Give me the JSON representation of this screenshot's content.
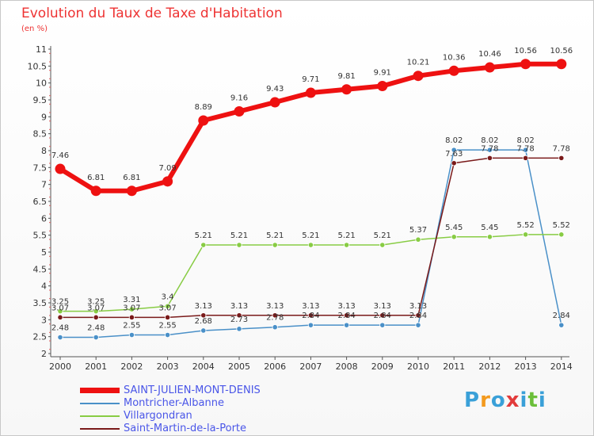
{
  "header": {
    "title": "Evolution du Taux de Taxe d'Habitation",
    "subtitle": "(en %)"
  },
  "logo": {
    "letters": [
      "P",
      "r",
      "o",
      "x",
      "i",
      "t",
      "i"
    ],
    "colors": [
      "#3aa0d8",
      "#f39a1e",
      "#3aa0d8",
      "#e23b3b",
      "#3aa0d8",
      "#6cbf3a",
      "#3aa0d8"
    ]
  },
  "chart_data": {
    "type": "line",
    "title": "Evolution du Taux de Taxe d'Habitation",
    "subtitle": "(en %)",
    "xlabel": "",
    "ylabel": "",
    "x": [
      "2000",
      "2001",
      "2002",
      "2003",
      "2004",
      "2005",
      "2006",
      "2007",
      "2008",
      "2009",
      "2010",
      "2011",
      "2012",
      "2013",
      "2014"
    ],
    "ylim": [
      2,
      11
    ],
    "yticks": [
      "2",
      "2.5",
      "3",
      "3.5",
      "4",
      "4.5",
      "5",
      "5.5",
      "6",
      "6.5",
      "7",
      "7.5",
      "8",
      "8.5",
      "9",
      "9.5",
      "10",
      "10.5",
      "11"
    ],
    "grid": false,
    "legend_position": "bottom-left",
    "series": [
      {
        "name": "SAINT-JULIEN-MONT-DENIS",
        "color": "#ee1111",
        "values": [
          7.46,
          6.81,
          6.81,
          7.09,
          8.89,
          9.16,
          9.43,
          9.71,
          9.81,
          9.91,
          10.21,
          10.36,
          10.46,
          10.56,
          10.56
        ],
        "labels": [
          "7.46",
          "6.81",
          "6.81",
          "7.09",
          "8.89",
          "9.16",
          "9.43",
          "9.71",
          "9.81",
          "9.91",
          "10.21",
          "10.36",
          "10.46",
          "10.56",
          "10.56"
        ]
      },
      {
        "name": "Montricher-Albanne",
        "color": "#4a90c8",
        "values": [
          2.48,
          2.48,
          2.55,
          2.55,
          2.68,
          2.73,
          2.78,
          2.84,
          2.84,
          2.84,
          2.84,
          8.02,
          8.02,
          8.02,
          2.84
        ],
        "labels": [
          "2.48",
          "2.48",
          "2.55",
          "2.55",
          "2.68",
          "2.73",
          "2.78",
          "2.84",
          "2.84",
          "2.84",
          "2.84",
          "8.02",
          "8.02",
          "8.02",
          "2.84"
        ]
      },
      {
        "name": "Villargondran",
        "color": "#88cc44",
        "values": [
          3.25,
          3.25,
          3.31,
          3.4,
          5.21,
          5.21,
          5.21,
          5.21,
          5.21,
          5.21,
          5.37,
          5.45,
          5.45,
          5.52,
          5.52
        ],
        "labels": [
          "3.25",
          "3.25",
          "3.31",
          "3.4",
          "5.21",
          "5.21",
          "5.21",
          "5.21",
          "5.21",
          "5.21",
          "5.37",
          "5.45",
          "5.45",
          "5.52",
          "5.52"
        ]
      },
      {
        "name": "Saint-Martin-de-la-Porte",
        "color": "#7a1a1a",
        "values": [
          3.07,
          3.07,
          3.07,
          3.07,
          3.13,
          3.13,
          3.13,
          3.13,
          3.13,
          3.13,
          3.13,
          7.63,
          7.78,
          7.78,
          7.78
        ],
        "labels": [
          "3.07",
          "3.07",
          "3.07",
          "3.07",
          "3.13",
          "3.13",
          "3.13",
          "3.13",
          "3.13",
          "3.13",
          "3.13",
          "7.63",
          "7.78",
          "7.78",
          "7.78"
        ]
      }
    ]
  }
}
